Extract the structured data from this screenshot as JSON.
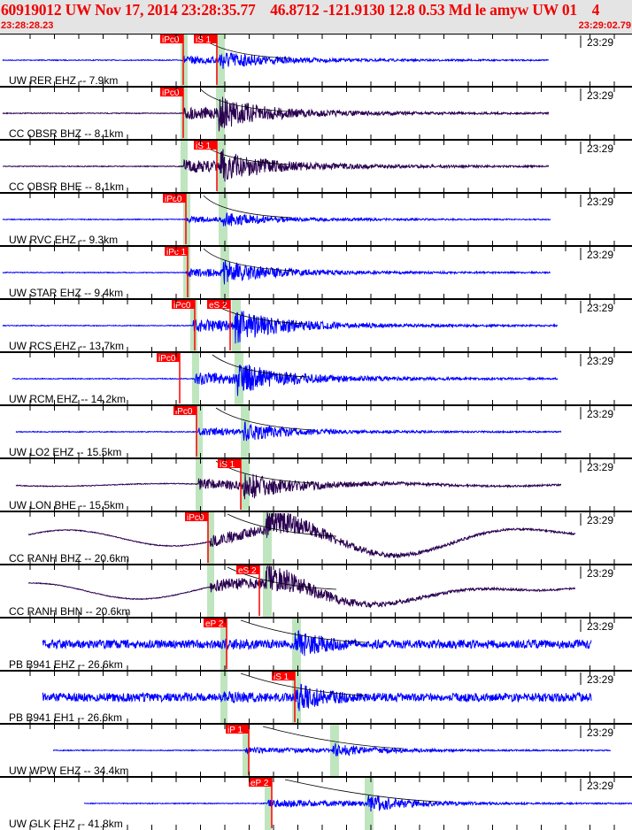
{
  "header": {
    "title": "60919012 UW Nov 17, 2014 23:28:35.77    46.8712 -121.9130 12.8 0.53 Md le amyw UW 01    4",
    "start_time": "23:28:28.23",
    "end_time": "23:29:02.79"
  },
  "colors": {
    "blue": "#0000ff",
    "purple": "#2a0050",
    "pick": "#ff0000",
    "band": "#bfe5bf"
  },
  "minute_label": "23:29",
  "traces": [
    {
      "label": "UW RER EHZ -- 7.9km",
      "color": "blue",
      "picks": [
        "iPc0",
        "iS 1"
      ]
    },
    {
      "label": "CC OBSR BHZ -- 8.1km",
      "color": "purple",
      "picks": [
        "iPc0"
      ]
    },
    {
      "label": "CC OBSR BHE -- 8.1km",
      "color": "purple",
      "picks": [
        "iS 1"
      ]
    },
    {
      "label": "UW RVC EHZ -- 9.3km",
      "color": "blue",
      "picks": [
        "iPc0"
      ]
    },
    {
      "label": "UW STAR EHZ -- 9.4km",
      "color": "blue",
      "picks": [
        "iPc 1"
      ]
    },
    {
      "label": "UW RCS EHZ -- 13.7km",
      "color": "blue",
      "picks": [
        "iPc0",
        "eS 2"
      ]
    },
    {
      "label": "UW RCM EHZ -- 14.2km",
      "color": "blue",
      "picks": [
        "iPc0"
      ]
    },
    {
      "label": "UW LO2 EHZ -- 15.5km",
      "color": "blue",
      "picks": [
        "iPc0"
      ]
    },
    {
      "label": "UW LON BHE -- 15.5km",
      "color": "purple",
      "picks": [
        "iS 1"
      ]
    },
    {
      "label": "CC RANH BHZ -- 20.6km",
      "color": "purple",
      "picks": [
        "iPc0"
      ]
    },
    {
      "label": "CC RANH BHN -- 20.6km",
      "color": "purple",
      "picks": [
        "eS 2"
      ]
    },
    {
      "label": "PB B941 EHZ -- 26.6km",
      "color": "blue",
      "picks": [
        "eP 2"
      ]
    },
    {
      "label": "PB B941 EH1 -- 26.6km",
      "color": "blue",
      "picks": [
        "iS 1"
      ]
    },
    {
      "label": "UW WPW EHZ -- 34.4km",
      "color": "blue",
      "picks": [
        "iP 1"
      ]
    },
    {
      "label": "UW GLK EHZ -- 41.8km",
      "color": "blue",
      "picks": [
        "eP 2"
      ]
    }
  ]
}
